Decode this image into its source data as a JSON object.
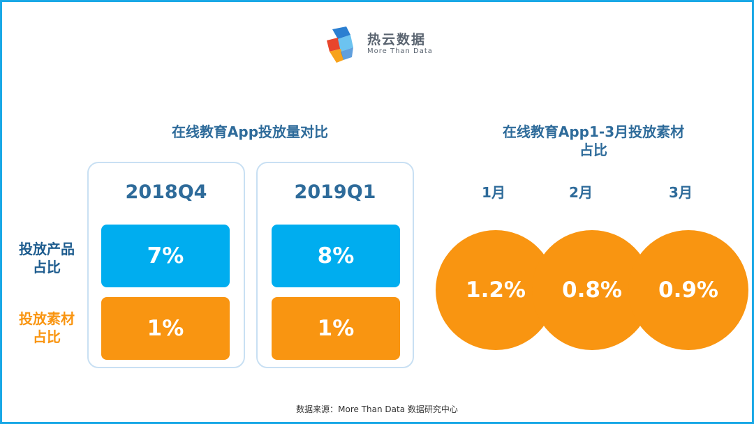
{
  "logo": {
    "name": "热云数据",
    "tagline": "More Than Data",
    "colors": {
      "blue": "#2b7fd1",
      "light_blue": "#6cc3f0",
      "red": "#e8452c",
      "orange": "#f7a21b"
    }
  },
  "left_section": {
    "title": "在线教育App投放量对比",
    "row_labels": {
      "product_line1": "投放产品",
      "product_line2": "占比",
      "material_line1": "投放素材",
      "material_line2": "占比"
    },
    "periods": [
      {
        "label": "2018Q4",
        "product_share": "7%",
        "material_share": "1%"
      },
      {
        "label": "2019Q1",
        "product_share": "8%",
        "material_share": "1%"
      }
    ]
  },
  "right_section": {
    "title_line1": "在线教育App1-3月投放素材",
    "title_line2": "占比",
    "months": [
      {
        "label": "1月",
        "value": "1.2%"
      },
      {
        "label": "2月",
        "value": "0.8%"
      },
      {
        "label": "3月",
        "value": "0.9%"
      }
    ]
  },
  "source": "数据来源：More Than Data 数据研究中心",
  "colors": {
    "frame": "#1aa8e6",
    "title": "#2e6b9a",
    "blue_cell": "#00adef",
    "orange_cell": "#f99511",
    "card_border": "#c9e0f3"
  }
}
